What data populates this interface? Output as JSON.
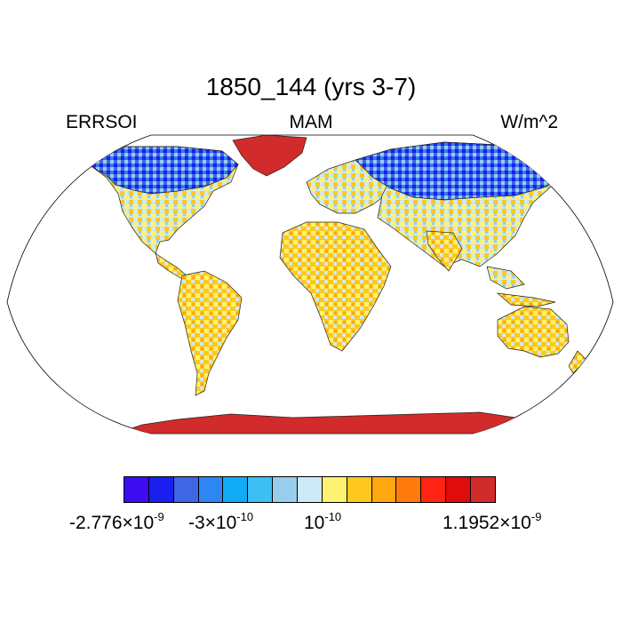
{
  "title": "1850_144 (yrs 3-7)",
  "left_label": "ERRSOI",
  "center_label": "MAM",
  "right_label": "W/m^2",
  "colorbar": {
    "colors": [
      "#3d0cf0",
      "#1a1ff0",
      "#3f66e4",
      "#2e86f2",
      "#10aaf5",
      "#3cc0f2",
      "#98cdec",
      "#cdeaf8",
      "#fff270",
      "#ffc81e",
      "#ffa70e",
      "#ff7a0a",
      "#ff2313",
      "#e00b0b",
      "#d22b2b"
    ],
    "labels": [
      {
        "base": "-2.776×10",
        "exp": "-9"
      },
      {
        "base": "-3×10",
        "exp": "-10"
      },
      {
        "base": "10",
        "exp": "-10"
      },
      {
        "base": "1.1952×10",
        "exp": "-9"
      }
    ]
  },
  "map": {
    "projection": "Robinson",
    "background_color": "#ffffff"
  }
}
